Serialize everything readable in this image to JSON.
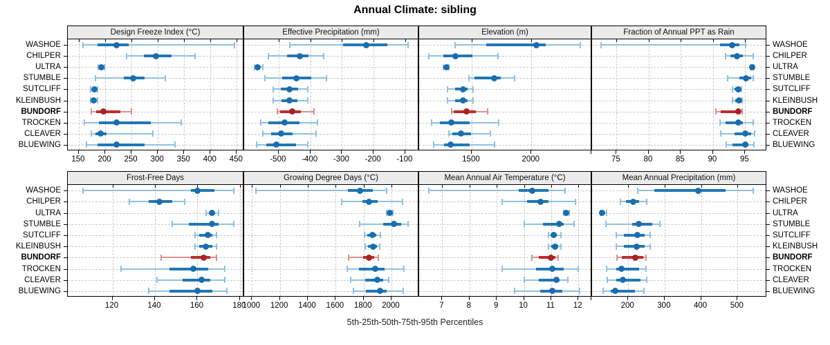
{
  "title": "Annual Climate: sibling",
  "caption": "5th-25th-50th-75th-95th Percentiles",
  "colors": {
    "site_main": "#2077b4",
    "site_light": "#90c0e0",
    "site_dot": "#1a6dad",
    "highlight_main": "#bf2b2d",
    "highlight_light": "#d98f8f",
    "highlight_dot": "#a92123",
    "strip_bg": "#ebebeb",
    "grid": "#c9c9c9"
  },
  "chart_data": {
    "type": "dotplot-percentiles-trellis",
    "title": "Annual Climate: sibling",
    "caption": "5th-25th-50th-75th-95th Percentiles",
    "percentiles": [
      5,
      25,
      50,
      75,
      95
    ],
    "legend_position": "none",
    "grid": "dashed",
    "sites": [
      "WASHOE",
      "CHILPER",
      "ULTRA",
      "STUMBLE",
      "SUTCLIFF",
      "KLEINBUSH",
      "BUNDORF",
      "TROCKEN",
      "CLEAVER",
      "BLUEWING"
    ],
    "highlighted_site": "BUNDORF",
    "panels": [
      {
        "label": "Design Freeze Index (°C)",
        "row": 0,
        "col": 0,
        "xlim": [
          129,
          464
        ],
        "ticks": [
          150,
          200,
          250,
          300,
          350,
          400,
          450
        ],
        "tick_labels": [
          "150",
          "200",
          "250",
          "300",
          "350",
          "400",
          "450"
        ],
        "values": {
          "WASHOE": [
            158,
            186,
            222,
            245,
            446
          ],
          "CHILPER": [
            241,
            273,
            296,
            326,
            371
          ],
          "ULTRA": [
            187,
            190,
            193,
            196,
            199
          ],
          "STUMBLE": [
            182,
            236,
            253,
            275,
            314
          ],
          "SUTCLIFF": [
            172,
            176,
            179,
            182,
            186
          ],
          "KLEINBUSH": [
            172,
            175,
            178,
            181,
            185
          ],
          "BUNDORF": [
            174,
            183,
            196,
            229,
            250
          ],
          "TROCKEN": [
            160,
            188,
            221,
            286,
            344
          ],
          "CLEAVER": [
            174,
            182,
            192,
            202,
            291
          ],
          "BLUEWING": [
            165,
            185,
            221,
            275,
            332
          ]
        }
      },
      {
        "label": "Effective Precipitation (mm)",
        "row": 0,
        "col": 1,
        "xlim": [
          -609,
          -56
        ],
        "ticks": [
          -500,
          -400,
          -300,
          -200,
          -100
        ],
        "tick_labels": [
          "-500",
          "-400",
          "-300",
          "-200",
          "-100"
        ],
        "values": {
          "WASHOE": [
            -464,
            -296,
            -223,
            -157,
            -92
          ],
          "CHILPER": [
            -533,
            -474,
            -432,
            -405,
            -358
          ],
          "ULTRA": [
            -577,
            -572,
            -567,
            -561,
            -550
          ],
          "STUMBLE": [
            -544,
            -489,
            -444,
            -398,
            -348
          ],
          "SUTCLIFF": [
            -517,
            -493,
            -466,
            -438,
            -409
          ],
          "KLEINBUSH": [
            -517,
            -492,
            -465,
            -440,
            -408
          ],
          "BUNDORF": [
            -505,
            -496,
            -458,
            -430,
            -388
          ],
          "TROCKEN": [
            -557,
            -533,
            -482,
            -434,
            -377
          ],
          "CLEAVER": [
            -551,
            -523,
            -491,
            -456,
            -381
          ],
          "BLUEWING": [
            -569,
            -540,
            -507,
            -445,
            -409
          ]
        }
      },
      {
        "label": "Elevation (m)",
        "row": 0,
        "col": 2,
        "xlim": [
          1060,
          2508
        ],
        "ticks": [
          1500,
          2000,
          2500
        ],
        "tick_labels": [
          "1500",
          "2000",
          ""
        ],
        "values": {
          "WASHOE": [
            1359,
            1620,
            2041,
            2122,
            2412
          ],
          "CHILPER": [
            1141,
            1262,
            1363,
            1504,
            1720
          ],
          "ULTRA": [
            1262,
            1275,
            1286,
            1297,
            1310
          ],
          "STUMBLE": [
            1475,
            1523,
            1691,
            1745,
            1857
          ],
          "SUTCLIFF": [
            1297,
            1359,
            1426,
            1465,
            1510
          ],
          "KLEINBUSH": [
            1300,
            1360,
            1430,
            1465,
            1512
          ],
          "BUNDORF": [
            1330,
            1349,
            1455,
            1533,
            1635
          ],
          "TROCKEN": [
            1166,
            1233,
            1330,
            1481,
            1726
          ],
          "CLEAVER": [
            1307,
            1340,
            1411,
            1494,
            1658
          ],
          "BLUEWING": [
            1180,
            1268,
            1326,
            1481,
            1693
          ]
        }
      },
      {
        "label": "Fraction of Annual PPT as Rain",
        "row": 0,
        "col": 3,
        "xlim": [
          71.2,
          98.4
        ],
        "ticks": [
          75,
          80,
          85,
          90,
          95
        ],
        "tick_labels": [
          "75",
          "80",
          "85",
          "90",
          "95"
        ],
        "values": {
          "WASHOE": [
            72.6,
            91.1,
            93.0,
            94.1,
            95.1
          ],
          "CHILPER": [
            91.9,
            92.7,
            93.7,
            94.6,
            96.2
          ],
          "ULTRA": [
            95.8,
            96.0,
            96.1,
            96.2,
            96.4
          ],
          "STUMBLE": [
            92.3,
            94.1,
            95.1,
            95.9,
            96.3
          ],
          "SUTCLIFF": [
            93.0,
            93.4,
            93.9,
            94.2,
            94.4
          ],
          "KLEINBUSH": [
            93.0,
            93.5,
            94.0,
            94.3,
            94.5
          ],
          "BUNDORF": [
            90.4,
            91.2,
            93.9,
            94.2,
            94.5
          ],
          "TROCKEN": [
            91.1,
            92.0,
            93.9,
            94.6,
            96.3
          ],
          "CLEAVER": [
            91.2,
            93.4,
            95.0,
            95.9,
            96.5
          ],
          "BLUEWING": [
            92.1,
            93.0,
            95.0,
            95.5,
            96.4
          ]
        }
      },
      {
        "label": "Frost-Free Days",
        "row": 1,
        "col": 0,
        "xlim": [
          99,
          182
        ],
        "ticks": [
          120,
          140,
          160,
          180
        ],
        "tick_labels": [
          "120",
          "140",
          "160",
          "180"
        ],
        "values": {
          "WASHOE": [
            106,
            157,
            160,
            168,
            177
          ],
          "CHILPER": [
            128,
            137,
            142,
            148,
            154
          ],
          "ULTRA": [
            164,
            166,
            167,
            168,
            170
          ],
          "STUMBLE": [
            148,
            156,
            167,
            170,
            177
          ],
          "SUTCLIFF": [
            159,
            161,
            165,
            167,
            169
          ],
          "KLEINBUSH": [
            159,
            161,
            164,
            167,
            169
          ],
          "BUNDORF": [
            143,
            157,
            163,
            166,
            169
          ],
          "TROCKEN": [
            124,
            147,
            158,
            165,
            173
          ],
          "CLEAVER": [
            141,
            153,
            162,
            166,
            173
          ],
          "BLUEWING": [
            137,
            147,
            160,
            167,
            174
          ]
        }
      },
      {
        "label": "Growing Degree Days (°C)",
        "row": 1,
        "col": 1,
        "xlim": [
          944,
          2198
        ],
        "ticks": [
          1000,
          1200,
          1400,
          1600,
          1800,
          2000
        ],
        "tick_labels": [
          "1000",
          "1200",
          "1400",
          "1600",
          "1800",
          "2000"
        ],
        "values": {
          "WASHOE": [
            1028,
            1686,
            1773,
            1868,
            1967
          ],
          "CHILPER": [
            1641,
            1790,
            1840,
            1901,
            2079
          ],
          "ULTRA": [
            1967,
            1980,
            1989,
            1998,
            2008
          ],
          "STUMBLE": [
            1773,
            1939,
            2017,
            2071,
            2121
          ],
          "SUTCLIFF": [
            1807,
            1826,
            1865,
            1893,
            1922
          ],
          "KLEINBUSH": [
            1810,
            1830,
            1868,
            1895,
            1917
          ],
          "BUNDORF": [
            1691,
            1797,
            1838,
            1876,
            1904
          ],
          "TROCKEN": [
            1681,
            1769,
            1884,
            1951,
            2088
          ],
          "CLEAVER": [
            1707,
            1810,
            1898,
            1939,
            1979
          ],
          "BLUEWING": [
            1727,
            1818,
            1917,
            1967,
            2083
          ]
        }
      },
      {
        "label": "Mean Annual Air Temperature (°C)",
        "row": 1,
        "col": 2,
        "xlim": [
          6.15,
          12.5
        ],
        "ticks": [
          7,
          8,
          9,
          10,
          11,
          12
        ],
        "tick_labels": [
          "7",
          "8",
          "9",
          "10",
          "11",
          "12"
        ],
        "values": {
          "WASHOE": [
            6.5,
            9.8,
            10.3,
            10.9,
            11.5
          ],
          "CHILPER": [
            9.2,
            10.1,
            10.6,
            10.9,
            11.9
          ],
          "ULTRA": [
            11.45,
            11.5,
            11.55,
            11.6,
            11.65
          ],
          "STUMBLE": [
            10.0,
            10.7,
            11.3,
            11.45,
            11.85
          ],
          "SUTCLIFF": [
            10.9,
            11.0,
            11.1,
            11.2,
            11.35
          ],
          "KLEINBUSH": [
            10.9,
            11.0,
            11.15,
            11.25,
            11.35
          ],
          "BUNDORF": [
            10.3,
            10.55,
            11.0,
            11.15,
            11.25
          ],
          "TROCKEN": [
            9.2,
            10.45,
            11.05,
            11.45,
            12.0
          ],
          "CLEAVER": [
            10.0,
            10.55,
            11.2,
            11.3,
            11.6
          ],
          "BLUEWING": [
            9.65,
            10.6,
            11.05,
            11.4,
            12.05
          ]
        }
      },
      {
        "label": "Mean Annual Precipitation (mm)",
        "row": 1,
        "col": 3,
        "xlim": [
          101,
          581
        ],
        "ticks": [
          100,
          200,
          300,
          400,
          500
        ],
        "tick_labels": [
          "",
          "200",
          "300",
          "400",
          "500"
        ],
        "values": {
          "WASHOE": [
            227,
            272,
            392,
            468,
            543
          ],
          "CHILPER": [
            179,
            194,
            213,
            230,
            251
          ],
          "ULTRA": [
            123,
            126,
            129,
            133,
            140
          ],
          "STUMBLE": [
            139,
            211,
            229,
            266,
            287
          ],
          "SUTCLIFF": [
            167,
            189,
            225,
            246,
            261
          ],
          "KLEINBUSH": [
            167,
            189,
            224,
            245,
            260
          ],
          "BUNDORF": [
            170,
            183,
            220,
            241,
            249
          ],
          "TROCKEN": [
            141,
            167,
            182,
            230,
            249
          ],
          "CLEAVER": [
            142,
            167,
            185,
            234,
            251
          ],
          "BLUEWING": [
            131,
            153,
            165,
            218,
            243
          ]
        }
      }
    ]
  }
}
